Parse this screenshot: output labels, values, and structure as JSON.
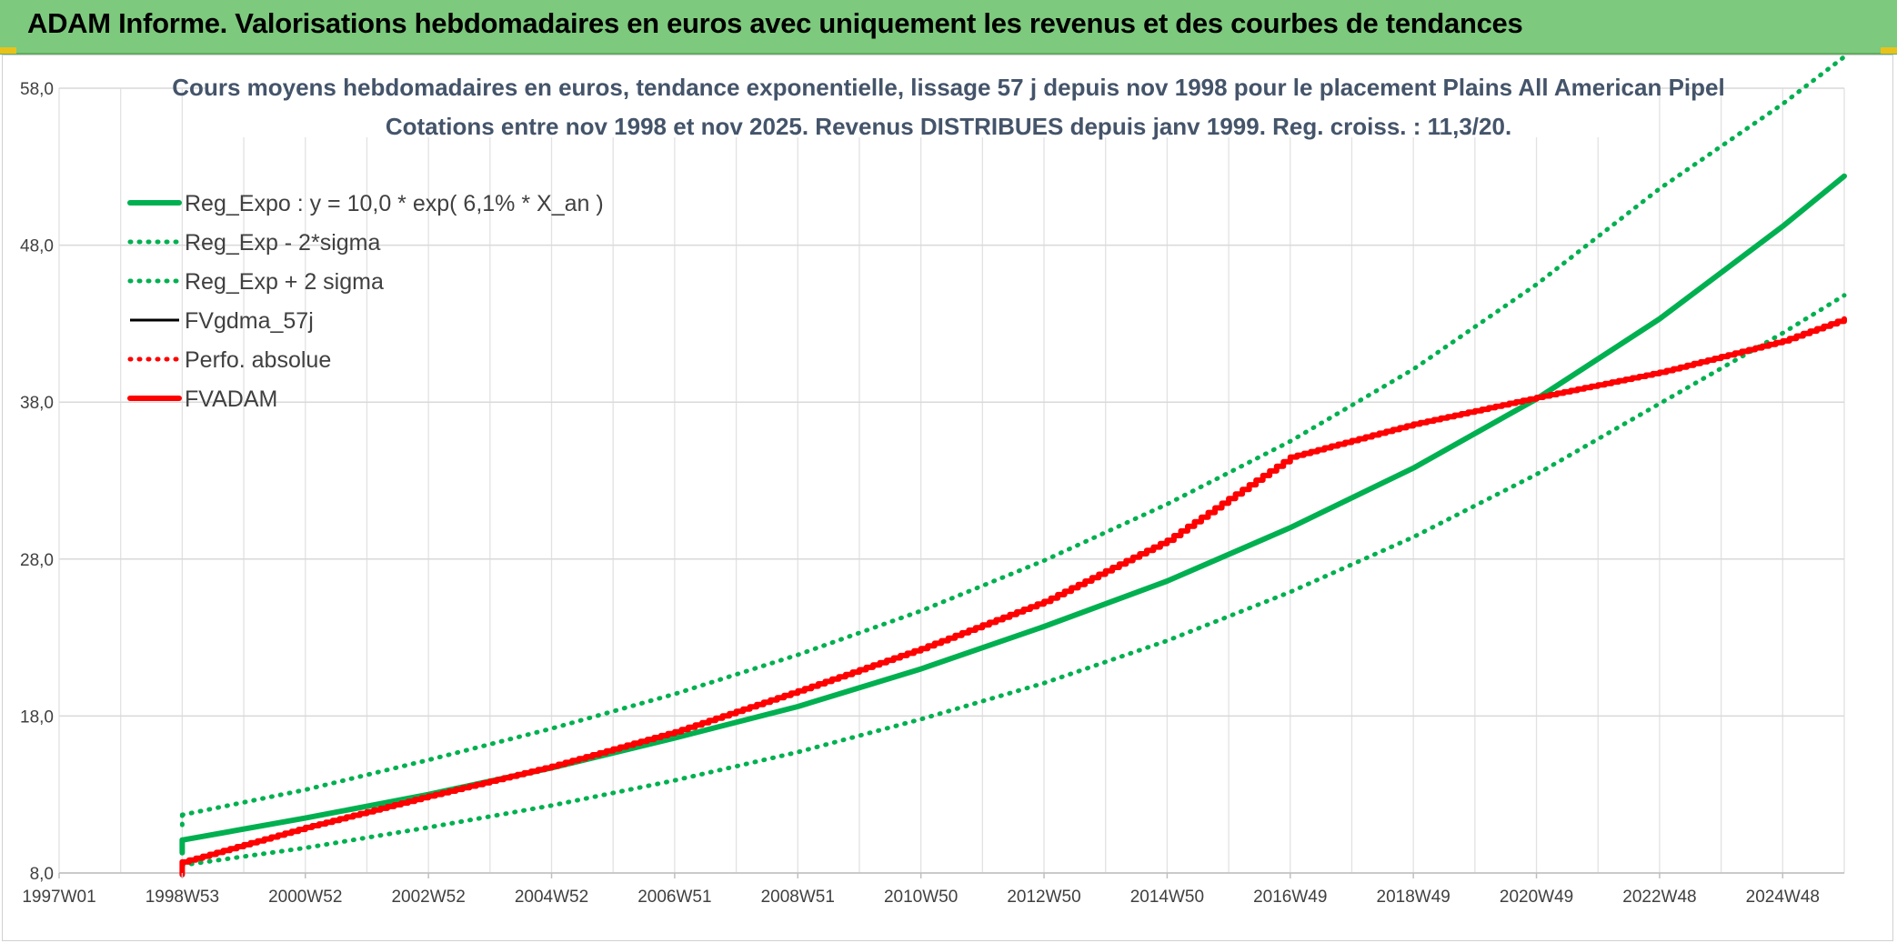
{
  "banner": {
    "title": "ADAM Informe. Valorisations hebdomadaires en euros avec uniquement les revenus et des courbes de tendances"
  },
  "chart_data": {
    "type": "line",
    "title_line1": "Cours moyens hebdomadaires en euros, tendance exponentielle, lissage 57 j depuis nov 1998 pour le placement Plains All American Pipel",
    "title_line2": "Cotations entre nov 1998 et nov 2025. Revenus DISTRIBUES depuis janv 1999. Reg. croiss. : 11,3/20.",
    "xlabel": "",
    "ylabel": "",
    "xlim": [
      1997.0,
      2026.0
    ],
    "ylim": [
      8.0,
      58.0
    ],
    "y_ticks": [
      "58,0",
      "48,0",
      "38,0",
      "28,0",
      "18,0",
      "8,0"
    ],
    "y_tick_values": [
      58,
      48,
      38,
      28,
      18,
      8
    ],
    "x_ticks": [
      "1997W01",
      "1998W53",
      "2000W52",
      "2002W52",
      "2004W52",
      "2006W51",
      "2008W51",
      "2010W50",
      "2012W50",
      "2014W50",
      "2016W49",
      "2018W49",
      "2020W49",
      "2022W48",
      "2024W48"
    ],
    "x_tick_values": [
      1997,
      1999,
      2001,
      2003,
      2005,
      2007,
      2009,
      2011,
      2013,
      2015,
      2017,
      2019,
      2021,
      2023,
      2025
    ],
    "grid": true,
    "legend_position": "top-left",
    "series": [
      {
        "name": "Reg_Expo : y = 10,0 * exp( 6,1% *  X_an )",
        "color": "#00b050",
        "style": "solid-thick",
        "x": [
          1999,
          2001,
          2003,
          2005,
          2007,
          2009,
          2011,
          2013,
          2015,
          2017,
          2019,
          2021,
          2023,
          2025,
          2026
        ],
        "values": [
          10.1,
          11.5,
          13.0,
          14.7,
          16.6,
          18.6,
          21.0,
          23.7,
          26.6,
          30.0,
          33.8,
          38.2,
          43.3,
          49.2,
          52.4
        ]
      },
      {
        "name": "Reg_Exp - 2*sigma",
        "color": "#00b050",
        "style": "dotted",
        "x": [
          1999,
          2001,
          2003,
          2005,
          2007,
          2009,
          2011,
          2013,
          2015,
          2017,
          2019,
          2021,
          2023,
          2025,
          2026
        ],
        "values": [
          8.5,
          9.6,
          10.9,
          12.3,
          13.9,
          15.7,
          17.8,
          20.1,
          22.8,
          25.9,
          29.4,
          33.4,
          37.9,
          42.4,
          44.8
        ]
      },
      {
        "name": "Reg_Exp + 2 sigma",
        "color": "#00b050",
        "style": "dotted",
        "x": [
          1999,
          2001,
          2003,
          2005,
          2007,
          2009,
          2011,
          2013,
          2015,
          2017,
          2019,
          2021,
          2023,
          2025,
          2026
        ],
        "values": [
          11.7,
          13.3,
          15.2,
          17.2,
          19.4,
          21.9,
          24.7,
          27.9,
          31.5,
          35.5,
          40.1,
          45.5,
          51.6,
          57.0,
          60.0
        ]
      },
      {
        "name": "FVgdma_57j",
        "color": "#000000",
        "style": "solid",
        "x": [],
        "values": []
      },
      {
        "name": "Perfo. absolue",
        "color": "#ff0000",
        "style": "dotted",
        "x": [],
        "values": []
      },
      {
        "name": "FVADAM",
        "color": "#ff0000",
        "style": "solid-thick",
        "x": [
          1999,
          2001,
          2003,
          2005,
          2007,
          2009,
          2011,
          2013,
          2015,
          2017,
          2019,
          2021,
          2023,
          2025,
          2026
        ],
        "values": [
          8.7,
          10.9,
          12.9,
          14.8,
          17.0,
          19.6,
          22.3,
          25.3,
          29.2,
          34.5,
          36.6,
          38.3,
          39.9,
          41.9,
          43.3
        ]
      }
    ]
  },
  "colors": {
    "banner": "#7dc97d",
    "green": "#00b050",
    "red": "#ff0000",
    "title": "#44546a"
  }
}
